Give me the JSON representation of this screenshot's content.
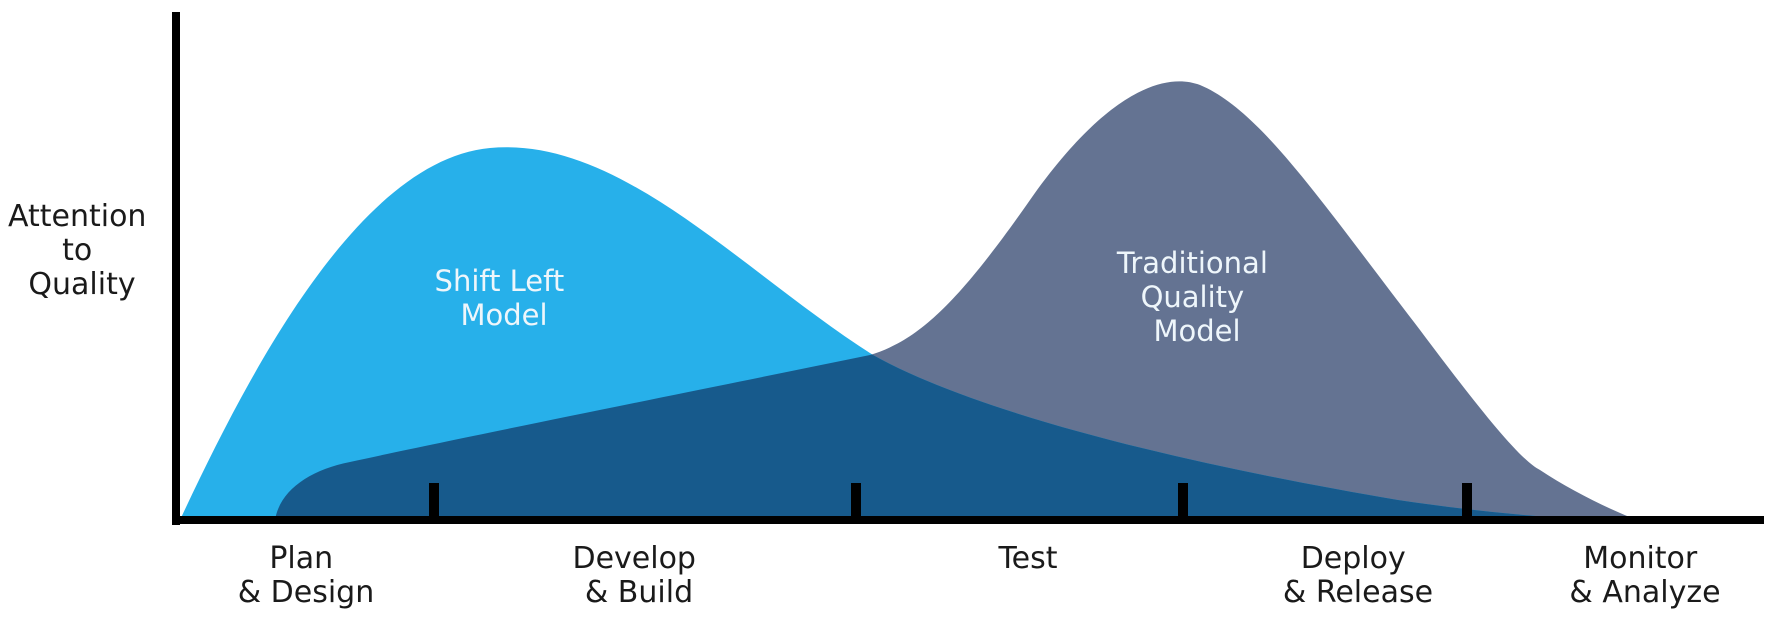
{
  "y_axis": {
    "label_lines": [
      "Attention",
      "to",
      "Quality"
    ]
  },
  "x_axis": {
    "phases": [
      {
        "line1": "Plan",
        "line2": "& Design"
      },
      {
        "line1": "Develop",
        "line2": "& Build"
      },
      {
        "line1": "Test",
        "line2": ""
      },
      {
        "line1": "Deploy",
        "line2": "& Release"
      },
      {
        "line1": "Monitor",
        "line2": "& Analyze"
      }
    ]
  },
  "curves": {
    "shift_left": {
      "label_lines": [
        "Shift Left",
        "Model"
      ],
      "color": "#27b0ea"
    },
    "traditional": {
      "label_lines": [
        "Traditional",
        "Quality",
        "Model"
      ],
      "color": "#647392"
    },
    "overlap_color": "#175a8c"
  },
  "axis_color": "#000000"
}
